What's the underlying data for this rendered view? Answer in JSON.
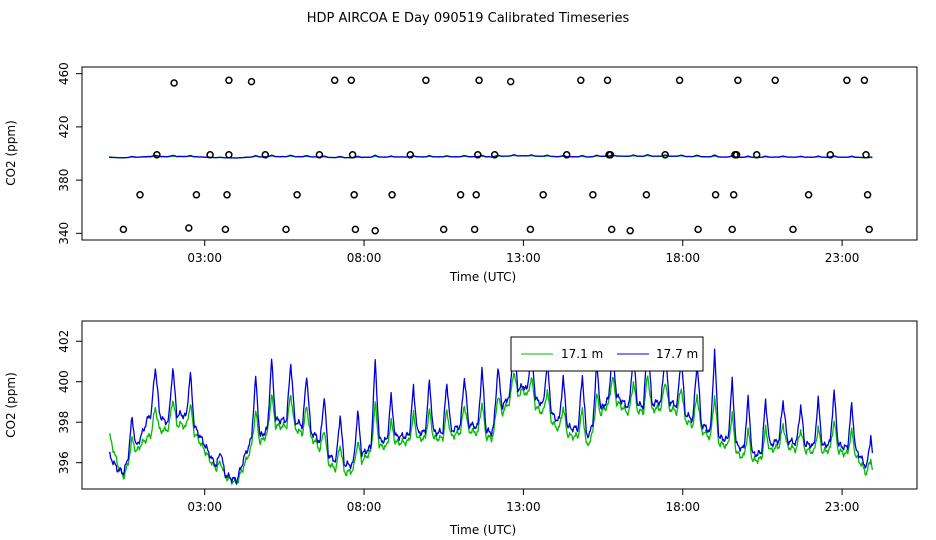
{
  "chart_data": [
    {
      "type": "scatter+line",
      "title": "HDP AIRCOA E  Day 090519  Calibrated Timeseries",
      "xlabel": "Time (UTC)",
      "ylabel": "CO2 (ppm)",
      "xlim": [
        -0.85,
        25.35
      ],
      "ylim": [
        335,
        465
      ],
      "xticks": [
        3,
        8,
        13,
        18,
        23
      ],
      "xtick_labels": [
        "03:00",
        "08:00",
        "13:00",
        "18:00",
        "23:00"
      ],
      "yticks": [
        340,
        380,
        420,
        460
      ],
      "ytick_labels": [
        "340",
        "380",
        "420",
        "460"
      ],
      "calibration_points": {
        "x": [
          0.45,
          0.97,
          1.5,
          2.04,
          2.5,
          2.74,
          3.17,
          3.65,
          3.7,
          3.76,
          3.76,
          4.47,
          4.9,
          5.55,
          5.9,
          6.6,
          7.08,
          7.6,
          7.64,
          7.69,
          7.73,
          8.35,
          8.88,
          9.45,
          9.94,
          10.5,
          11.03,
          11.47,
          11.52,
          11.57,
          11.61,
          12.1,
          12.6,
          13.22,
          13.62,
          14.36,
          14.8,
          15.18,
          15.64,
          15.69,
          15.73,
          15.77,
          16.35,
          16.86,
          17.45,
          17.9,
          18.48,
          19.03,
          19.55,
          19.6,
          19.64,
          19.69,
          19.73,
          20.32,
          20.9,
          21.46,
          21.95,
          22.63,
          23.15,
          23.7,
          23.75,
          23.8,
          23.85
        ],
        "y": [
          343,
          369,
          399,
          453,
          344,
          369,
          399,
          343,
          369,
          399,
          455,
          454,
          399,
          343,
          369,
          399,
          455,
          455,
          399,
          369,
          343,
          342,
          369,
          399,
          455,
          343,
          369,
          343,
          369,
          399,
          455,
          399,
          454,
          343,
          369,
          399,
          455,
          369,
          455,
          399,
          399,
          343,
          342,
          369,
          399,
          455,
          343,
          369,
          343,
          369,
          399,
          399,
          455,
          399,
          455,
          343,
          369,
          399,
          455,
          455,
          399,
          369,
          343
        ]
      },
      "series": [
        {
          "name": "17.1 m",
          "color": "#00bb00",
          "ref": "lower_panel"
        },
        {
          "name": "17.7 m",
          "color": "#0000dd",
          "ref": "lower_panel"
        }
      ]
    },
    {
      "type": "line",
      "title": "",
      "xlabel": "Time (UTC)",
      "ylabel": "CO2 (ppm)",
      "xlim": [
        -0.85,
        25.35
      ],
      "ylim": [
        394.7,
        403.0
      ],
      "xticks": [
        3,
        8,
        13,
        18,
        23
      ],
      "xtick_labels": [
        "03:00",
        "08:00",
        "13:00",
        "18:00",
        "23:00"
      ],
      "yticks": [
        396,
        398,
        400,
        402
      ],
      "ytick_labels": [
        "396",
        "398",
        "400",
        "402"
      ],
      "legend": {
        "position": "top-center",
        "entries": [
          "17.1 m",
          "17.7 m"
        ]
      },
      "x": [
        0,
        0.25,
        0.45,
        0.6,
        0.8,
        1.0,
        1.25,
        1.5,
        1.75,
        2.0,
        2.25,
        2.5,
        2.75,
        3.0,
        3.25,
        3.5,
        3.75,
        4.0,
        4.25,
        4.5,
        4.75,
        5.0,
        5.25,
        5.5,
        5.75,
        6.0,
        6.25,
        6.5,
        6.75,
        7.0,
        7.25,
        7.45,
        7.6,
        7.8,
        8.0,
        8.25,
        8.5,
        8.75,
        9.0,
        9.25,
        9.5,
        9.75,
        10.0,
        10.25,
        10.5,
        10.75,
        11.0,
        11.25,
        11.5,
        11.75,
        12.0,
        12.25,
        12.5,
        12.75,
        13.0,
        13.25,
        13.5,
        13.75,
        14.0,
        14.25,
        14.5,
        14.75,
        15.0,
        15.25,
        15.5,
        15.75,
        16.0,
        16.25,
        16.5,
        16.75,
        17.0,
        17.25,
        17.5,
        17.75,
        18.0,
        18.25,
        18.5,
        18.75,
        19.0,
        19.25,
        19.5,
        19.75,
        20.0,
        20.25,
        20.5,
        20.75,
        21.0,
        21.25,
        21.5,
        21.75,
        22.0,
        22.25,
        22.5,
        22.75,
        23.0,
        23.25,
        23.5,
        23.75,
        23.95
      ],
      "series": [
        {
          "name": "17.1 m",
          "color": "#00bb00",
          "values": [
            397.4,
            396.0,
            395.3,
            395.9,
            396.4,
            396.9,
            397.3,
            397.6,
            397.6,
            397.8,
            397.9,
            397.7,
            397.3,
            396.6,
            395.9,
            395.5,
            395.2,
            395.0,
            395.9,
            396.9,
            397.0,
            397.5,
            397.8,
            397.8,
            397.8,
            397.5,
            397.3,
            397.0,
            396.2,
            395.8,
            395.6,
            395.5,
            395.6,
            395.8,
            396.2,
            396.6,
            396.8,
            396.8,
            397.0,
            397.0,
            397.1,
            397.2,
            397.2,
            397.2,
            397.2,
            397.3,
            397.5,
            397.6,
            397.5,
            397.3,
            397.2,
            398.2,
            398.9,
            399.2,
            399.6,
            398.9,
            398.6,
            398.3,
            397.8,
            397.5,
            397.3,
            397.3,
            396.8,
            397.7,
            398.6,
            399.0,
            398.9,
            398.5,
            398.6,
            398.5,
            398.6,
            398.7,
            398.7,
            398.6,
            398.2,
            397.9,
            397.7,
            397.4,
            397.0,
            396.9,
            396.8,
            396.4,
            396.2,
            396.1,
            396.2,
            396.6,
            396.8,
            396.8,
            396.7,
            396.6,
            396.6,
            396.4,
            396.6,
            396.7,
            396.5,
            396.4,
            396.2,
            395.5,
            395.0
          ]
        },
        {
          "name": "17.7 m",
          "color": "#0000dd",
          "values": [
            396.4,
            395.7,
            395.5,
            396.2,
            396.6,
            397.3,
            398.3,
            398.6,
            398.0,
            398.2,
            398.4,
            398.2,
            397.6,
            396.9,
            396.1,
            395.6,
            395.3,
            395.1,
            396.3,
            397.3,
            397.3,
            397.7,
            398.1,
            398.1,
            398.1,
            397.9,
            397.6,
            397.3,
            396.6,
            396.2,
            396.0,
            395.9,
            395.9,
            396.2,
            396.5,
            396.8,
            397.1,
            397.1,
            397.3,
            397.3,
            397.4,
            397.5,
            397.5,
            397.5,
            397.5,
            397.6,
            397.8,
            397.9,
            397.8,
            397.6,
            397.5,
            398.5,
            399.2,
            399.5,
            399.8,
            399.3,
            399.0,
            398.7,
            398.2,
            397.9,
            397.7,
            397.7,
            397.3,
            398.0,
            398.8,
            399.3,
            399.2,
            398.8,
            398.9,
            398.8,
            398.9,
            399.0,
            399.0,
            398.9,
            398.5,
            398.2,
            398.0,
            397.7,
            397.3,
            397.2,
            397.1,
            396.8,
            396.6,
            396.4,
            396.5,
            396.9,
            397.1,
            397.1,
            397.0,
            396.9,
            396.9,
            396.7,
            396.9,
            397.0,
            396.8,
            396.7,
            396.5,
            395.8,
            395.2
          ]
        }
      ],
      "spike_times": [
        0.72,
        1.45,
        2.0,
        2.55,
        3.5,
        4.6,
        5.1,
        5.7,
        6.2,
        6.75,
        7.25,
        7.8,
        8.35,
        8.85,
        9.55,
        10.05,
        10.6,
        11.15,
        11.7,
        12.2,
        12.7,
        13.25,
        13.75,
        14.25,
        14.85,
        15.3,
        15.8,
        16.45,
        16.9,
        17.45,
        17.95,
        18.45,
        19.0,
        19.55,
        20.05,
        20.6,
        21.15,
        21.7,
        22.25,
        22.75,
        23.3,
        23.9
      ],
      "spike_heights": [
        1.8,
        2.2,
        2.5,
        2.3,
        1.0,
        2.9,
        3.2,
        2.9,
        2.7,
        2.7,
        2.4,
        2.3,
        4.1,
        2.1,
        2.3,
        2.5,
        2.4,
        2.4,
        3.0,
        2.4,
        2.6,
        2.4,
        2.3,
        2.3,
        2.8,
        2.7,
        2.3,
        2.6,
        3.3,
        2.5,
        2.7,
        3.0,
        4.2,
        3.0,
        2.6,
        2.4,
        2.0,
        1.9,
        2.4,
        2.5,
        2.2,
        2.0
      ]
    }
  ]
}
